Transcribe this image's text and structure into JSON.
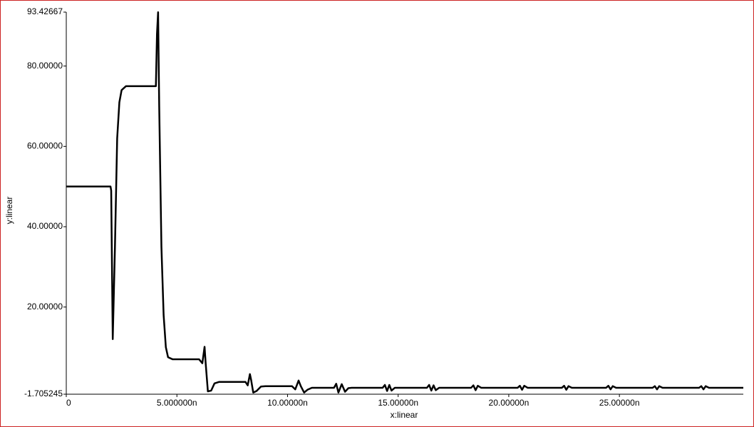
{
  "chart_data": {
    "type": "line",
    "x_label": "x:linear",
    "y_label": "y:linear",
    "xlim": [
      0,
      30.6
    ],
    "ylim": [
      -1.705245,
      93.42667
    ],
    "xticks": [
      0,
      {
        "value": 5,
        "label": "5.000000n"
      },
      {
        "value": 10,
        "label": "10.00000n"
      },
      {
        "value": 15,
        "label": "15.00000n"
      },
      {
        "value": 20,
        "label": "20.00000n"
      },
      {
        "value": 25,
        "label": "25.00000n"
      }
    ],
    "yticks": [
      -1.705245,
      {
        "value": 20,
        "label": "20.00000"
      },
      {
        "value": 40,
        "label": "40.00000"
      },
      {
        "value": 60,
        "label": "60.00000"
      },
      {
        "value": 80,
        "label": "80.00000"
      },
      93.42667
    ],
    "series": [
      {
        "color": "#000000",
        "x": [
          0,
          2.0,
          2.03,
          2.1,
          2.2,
          2.3,
          2.4,
          2.5,
          2.7,
          3.0,
          4.05,
          4.1,
          4.15,
          4.2,
          4.3,
          4.4,
          4.5,
          4.6,
          4.8,
          6.0,
          6.15,
          6.25,
          6.3,
          6.4,
          6.55,
          6.7,
          6.9,
          8.1,
          8.2,
          8.3,
          8.35,
          8.45,
          8.6,
          8.8,
          9.0,
          10.2,
          10.35,
          10.5,
          10.6,
          10.75,
          10.9,
          11.1,
          12.1,
          12.2,
          12.3,
          12.45,
          12.6,
          12.75,
          12.9,
          14.3,
          14.4,
          14.5,
          14.6,
          14.7,
          14.85,
          16.3,
          16.4,
          16.5,
          16.6,
          16.7,
          16.85,
          18.3,
          18.4,
          18.5,
          18.6,
          18.75,
          20.4,
          20.5,
          20.6,
          20.7,
          20.85,
          22.4,
          22.5,
          22.6,
          22.7,
          22.85,
          24.4,
          24.5,
          24.6,
          24.7,
          24.85,
          26.5,
          26.6,
          26.7,
          26.8,
          26.95,
          28.6,
          28.7,
          28.8,
          28.9,
          29.05,
          30.6
        ],
        "values": [
          50,
          50,
          49,
          12,
          35,
          62,
          71,
          74,
          75,
          75,
          75,
          88,
          93.4,
          70,
          35,
          18,
          10,
          7.5,
          7,
          7,
          6,
          10.1,
          6,
          -1,
          -0.8,
          1,
          1.35,
          1.35,
          0.5,
          3.3,
          2,
          -1.3,
          -0.9,
          0.2,
          0.3,
          0.3,
          -0.5,
          1.7,
          0.3,
          -1.3,
          -0.6,
          -0.1,
          -0.1,
          0.9,
          -1.3,
          0.8,
          -1.1,
          -0.2,
          -0.1,
          -0.1,
          0.6,
          -0.9,
          0.6,
          -0.8,
          -0.1,
          -0.1,
          0.6,
          -0.8,
          0.5,
          -0.7,
          -0.1,
          -0.1,
          0.5,
          -0.7,
          0.4,
          -0.1,
          -0.1,
          0.4,
          -0.6,
          0.4,
          -0.1,
          -0.1,
          0.4,
          -0.6,
          0.3,
          -0.1,
          -0.1,
          0.4,
          -0.5,
          0.3,
          -0.1,
          -0.1,
          0.3,
          -0.5,
          0.3,
          -0.1,
          -0.1,
          0.3,
          -0.5,
          0.3,
          -0.1,
          -0.1
        ]
      }
    ]
  }
}
